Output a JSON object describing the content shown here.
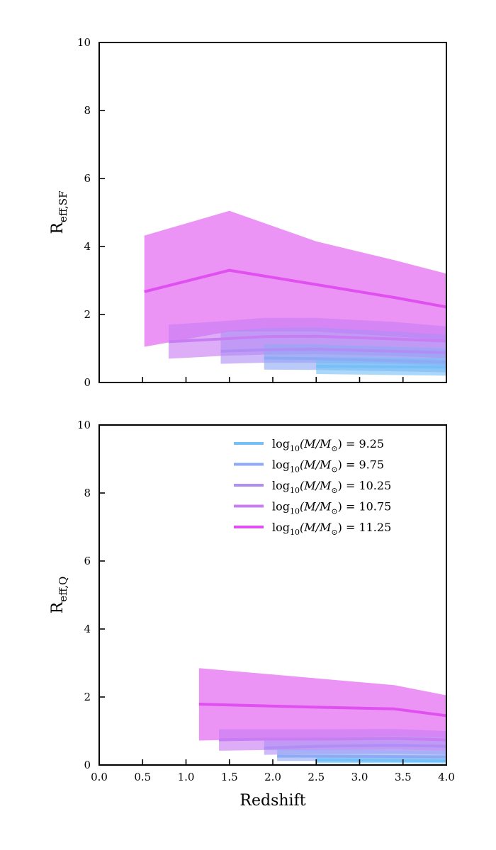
{
  "figure": {
    "xlabel": "Redshift"
  },
  "chart_data": [
    {
      "type": "line",
      "panel": "top",
      "ylabel_main": "R",
      "ylabel_sub": "eff,SF",
      "xlim": [
        0,
        4
      ],
      "ylim": [
        0,
        10
      ],
      "x_ticks": [
        "0.0",
        "0.5",
        "1.0",
        "1.5",
        "2.0",
        "2.5",
        "3.0",
        "3.5",
        "4.0"
      ],
      "x_ticks_labeled": false,
      "y_ticks": [
        "0",
        "2",
        "4",
        "6",
        "8",
        "10"
      ],
      "legend": false,
      "series": [
        {
          "mass": "9.25",
          "color": "#74c0f7",
          "x": [
            2.5,
            3.4,
            4.0
          ],
          "y": [
            0.48,
            0.46,
            0.45
          ],
          "lower": [
            0.25,
            0.22,
            0.2
          ],
          "upper": [
            0.75,
            0.72,
            0.7
          ]
        },
        {
          "mass": "9.75",
          "color": "#8faaf4",
          "x": [
            1.9,
            2.5,
            3.4,
            4.0
          ],
          "y": [
            0.72,
            0.7,
            0.64,
            0.6
          ],
          "lower": [
            0.38,
            0.37,
            0.33,
            0.3
          ],
          "upper": [
            1.12,
            1.12,
            1.05,
            1.0
          ]
        },
        {
          "mass": "10.25",
          "color": "#b08ef5",
          "x": [
            1.4,
            1.9,
            2.5,
            3.4,
            4.0
          ],
          "y": [
            0.92,
            0.96,
            0.98,
            0.92,
            0.88
          ],
          "lower": [
            0.55,
            0.58,
            0.58,
            0.55,
            0.5
          ],
          "upper": [
            1.5,
            1.6,
            1.62,
            1.5,
            1.4
          ]
        },
        {
          "mass": "10.75",
          "color": "#c87df2",
          "x": [
            0.8,
            1.4,
            1.9,
            2.5,
            3.4,
            4.0
          ],
          "y": [
            1.2,
            1.28,
            1.35,
            1.36,
            1.28,
            1.22
          ],
          "lower": [
            0.7,
            0.78,
            0.82,
            0.83,
            0.78,
            0.72
          ],
          "upper": [
            1.7,
            1.8,
            1.9,
            1.9,
            1.78,
            1.65
          ]
        },
        {
          "mass": "11.25",
          "color": "#e050f0",
          "x": [
            0.52,
            1.5,
            2.5,
            3.4,
            4.0
          ],
          "y": [
            2.67,
            3.3,
            2.88,
            2.5,
            2.22
          ],
          "lower": [
            1.05,
            1.5,
            1.5,
            1.35,
            1.25
          ],
          "upper": [
            4.32,
            5.05,
            4.15,
            3.6,
            3.2
          ]
        }
      ]
    },
    {
      "type": "line",
      "panel": "bottom",
      "ylabel_main": "R",
      "ylabel_sub": "eff,Q",
      "xlim": [
        0,
        4
      ],
      "ylim": [
        0,
        10
      ],
      "x_ticks": [
        "0.0",
        "0.5",
        "1.0",
        "1.5",
        "2.0",
        "2.5",
        "3.0",
        "3.5",
        "4.0"
      ],
      "x_ticks_labeled": true,
      "y_ticks": [
        "0",
        "2",
        "4",
        "6",
        "8",
        "10"
      ],
      "legend": true,
      "legend_position": "top-right",
      "series": [
        {
          "mass": "9.25",
          "color": "#74c0f7",
          "x": [
            2.5,
            3.4,
            4.0
          ],
          "y": [
            0.14,
            0.13,
            0.12
          ],
          "lower": [
            0.05,
            0.05,
            0.04
          ],
          "upper": [
            0.27,
            0.26,
            0.25
          ]
        },
        {
          "mass": "9.75",
          "color": "#8faaf4",
          "x": [
            2.05,
            2.5,
            3.4,
            4.0
          ],
          "y": [
            0.26,
            0.26,
            0.25,
            0.24
          ],
          "lower": [
            0.12,
            0.12,
            0.11,
            0.1
          ],
          "upper": [
            0.45,
            0.45,
            0.44,
            0.42
          ]
        },
        {
          "mass": "10.25",
          "color": "#b08ef5",
          "x": [
            1.9,
            2.5,
            3.4,
            4.0
          ],
          "y": [
            0.5,
            0.55,
            0.58,
            0.55
          ],
          "lower": [
            0.3,
            0.32,
            0.33,
            0.3
          ],
          "upper": [
            0.75,
            0.8,
            0.85,
            0.8
          ]
        },
        {
          "mass": "10.75",
          "color": "#c87df2",
          "x": [
            1.38,
            1.9,
            2.5,
            3.4,
            4.0
          ],
          "y": [
            0.74,
            0.76,
            0.76,
            0.78,
            0.74
          ],
          "lower": [
            0.42,
            0.44,
            0.44,
            0.45,
            0.42
          ],
          "upper": [
            1.05,
            1.05,
            1.05,
            1.06,
            1.0
          ]
        },
        {
          "mass": "11.25",
          "color": "#e050f0",
          "x": [
            1.15,
            2.5,
            3.4,
            4.0
          ],
          "y": [
            1.79,
            1.7,
            1.65,
            1.45
          ],
          "lower": [
            0.72,
            0.8,
            0.85,
            0.8
          ],
          "upper": [
            2.85,
            2.55,
            2.35,
            2.05
          ]
        }
      ]
    }
  ],
  "legend_entries": [
    {
      "prefix": "log",
      "sub": "10",
      "body": "(M/M",
      "sun": "⊙",
      "suffix": ") = 9.25",
      "color": "#74c0f7"
    },
    {
      "prefix": "log",
      "sub": "10",
      "body": "(M/M",
      "sun": "⊙",
      "suffix": ") = 9.75",
      "color": "#8faaf4"
    },
    {
      "prefix": "log",
      "sub": "10",
      "body": "(M/M",
      "sun": "⊙",
      "suffix": ") = 10.25",
      "color": "#b08ef5"
    },
    {
      "prefix": "log",
      "sub": "10",
      "body": "(M/M",
      "sun": "⊙",
      "suffix": ") = 10.75",
      "color": "#c87df2"
    },
    {
      "prefix": "log",
      "sub": "10",
      "body": "(M/M",
      "sun": "⊙",
      "suffix": ") = 11.25",
      "color": "#e050f0"
    }
  ]
}
